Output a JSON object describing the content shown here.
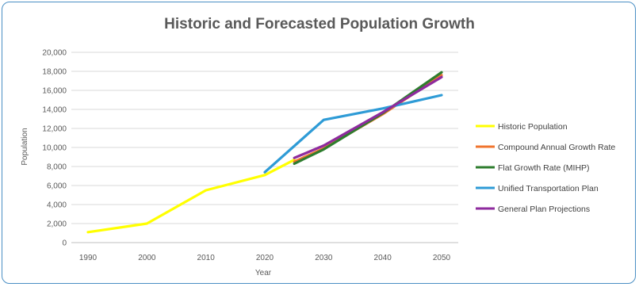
{
  "chart_data": {
    "type": "line",
    "title": "Historic and Forecasted Population Growth",
    "xlabel": "Year",
    "ylabel": "Population",
    "x_ticks": [
      "1990",
      "2000",
      "2010",
      "2020",
      "2030",
      "2040",
      "2050"
    ],
    "y_ticks": [
      "0",
      "2,000",
      "4,000",
      "6,000",
      "8,000",
      "10,000",
      "12,000",
      "14,000",
      "16,000",
      "18,000",
      "20,000"
    ],
    "ylim": [
      0,
      20000
    ],
    "xlim": [
      1990,
      2050
    ],
    "grid": true,
    "legend_position": "right",
    "series": [
      {
        "name": "Historic Population",
        "color": "#ffff00",
        "points": [
          [
            1990,
            1100
          ],
          [
            2000,
            2000
          ],
          [
            2010,
            5500
          ],
          [
            2020,
            7100
          ],
          [
            2025,
            8700
          ]
        ]
      },
      {
        "name": "Compound Annual Growth Rate",
        "color": "#f0742e",
        "points": [
          [
            2025,
            8500
          ],
          [
            2030,
            9900
          ],
          [
            2040,
            13500
          ],
          [
            2050,
            17600
          ]
        ]
      },
      {
        "name": "Flat Growth Rate (MIHP)",
        "color": "#2e7d2e",
        "points": [
          [
            2025,
            8300
          ],
          [
            2030,
            9800
          ],
          [
            2040,
            13600
          ],
          [
            2050,
            17900
          ]
        ]
      },
      {
        "name": "Unified Transportation Plan",
        "color": "#2e9bd6",
        "points": [
          [
            2020,
            7400
          ],
          [
            2030,
            12900
          ],
          [
            2040,
            14100
          ],
          [
            2050,
            15500
          ]
        ]
      },
      {
        "name": "General Plan Projections",
        "color": "#8e2b9e",
        "points": [
          [
            2025,
            8900
          ],
          [
            2030,
            10200
          ],
          [
            2040,
            13700
          ],
          [
            2050,
            17400
          ]
        ]
      }
    ]
  }
}
